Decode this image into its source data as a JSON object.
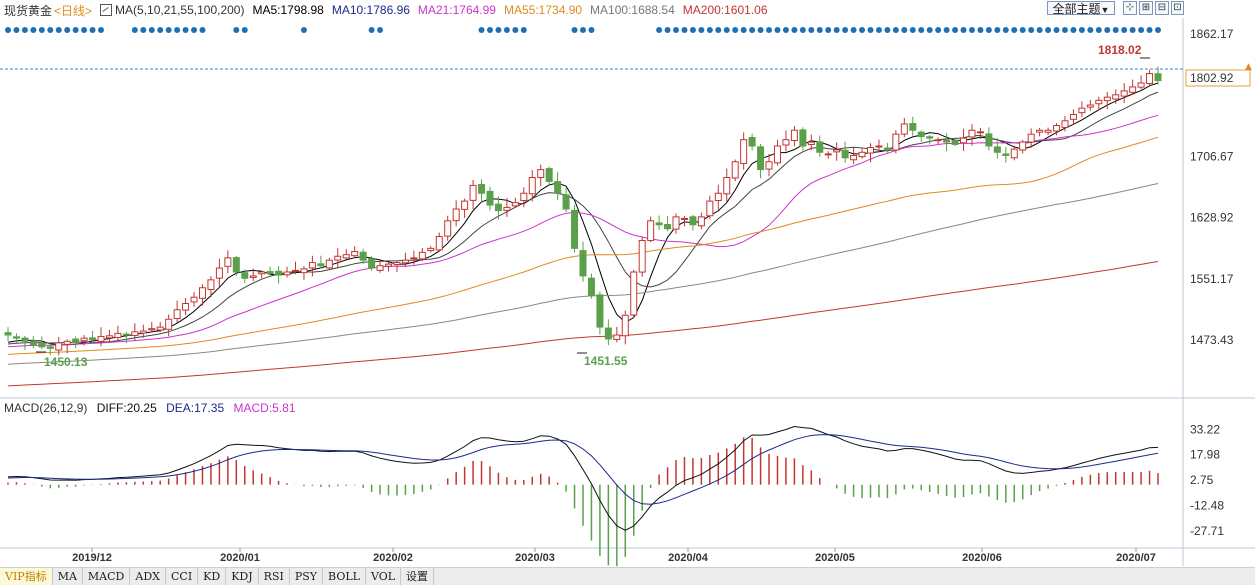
{
  "header": {
    "symbol": "现货黄金",
    "period": "<日线>",
    "ma_params": "MA(5,10,21,55,100,200)",
    "ma5": "MA5:1798.98",
    "ma10": "MA10:1786.96",
    "ma21": "MA21:1764.99",
    "ma55": "MA55:1734.90",
    "ma100": "MA100:1688.54",
    "ma200": "MA200:1601.06",
    "theme_button": "全部主题",
    "theme_arrow": "▼"
  },
  "colors": {
    "up": "#c23531",
    "down": "#5aa04a",
    "ma5": "#000000",
    "ma10": "#444444",
    "ma21": "#cc33cc",
    "ma55": "#e08a1e",
    "ma100": "#888888",
    "ma200": "#c0392b",
    "dots": "#1f6fb5",
    "last_price_line": "#3a86c8"
  },
  "macd": {
    "params": "MACD(26,12,9)",
    "diff": "DIFF:20.25",
    "dea": "DEA:17.35",
    "macd": "MACD:5.81"
  },
  "chart_data": [
    {
      "type": "candlestick",
      "title": "现货黄金 日线",
      "x_labels": [
        "2019/12",
        "2020/01",
        "2020/02",
        "2020/03",
        "2020/04",
        "2020/05",
        "2020/06",
        "2020/07"
      ],
      "ylim": [
        1400,
        1880
      ],
      "y_ticks": [
        "1862.17",
        "1706.67",
        "1628.92",
        "1551.17",
        "1473.43"
      ],
      "current_price": "1802.92",
      "annotations": {
        "high": "1818.02",
        "low1": "1450.13",
        "low2": "1451.55"
      },
      "close_path": [
        1480,
        1476,
        1472,
        1468,
        1465,
        1463,
        1470,
        1472,
        1470,
        1476,
        1474,
        1478,
        1479,
        1482,
        1481,
        1484,
        1485,
        1488,
        1490,
        1500,
        1512,
        1520,
        1528,
        1540,
        1550,
        1565,
        1578,
        1560,
        1552,
        1555,
        1560,
        1558,
        1556,
        1560,
        1562,
        1564,
        1572,
        1568,
        1575,
        1580,
        1582,
        1586,
        1575,
        1565,
        1568,
        1570,
        1572,
        1575,
        1578,
        1585,
        1590,
        1605,
        1625,
        1640,
        1650,
        1670,
        1660,
        1645,
        1638,
        1642,
        1648,
        1660,
        1680,
        1690,
        1675,
        1660,
        1640,
        1590,
        1555,
        1530,
        1490,
        1475,
        1480,
        1505,
        1560,
        1600,
        1625,
        1620,
        1615,
        1630,
        1628,
        1620,
        1630,
        1650,
        1660,
        1680,
        1700,
        1728,
        1720,
        1690,
        1700,
        1720,
        1728,
        1740,
        1720,
        1725,
        1712,
        1710,
        1715,
        1705,
        1708,
        1712,
        1718,
        1720,
        1715,
        1735,
        1748,
        1740,
        1732,
        1730,
        1728,
        1725,
        1722,
        1730,
        1740,
        1738,
        1720,
        1712,
        1708,
        1716,
        1725,
        1735,
        1740,
        1740,
        1746,
        1752,
        1760,
        1768,
        1772,
        1778,
        1782,
        1785,
        1790,
        1795,
        1800,
        1812,
        1803
      ],
      "ma_series": [
        "MA5",
        "MA10",
        "MA21",
        "MA55",
        "MA100",
        "MA200"
      ],
      "marker_dot_rows": 1
    },
    {
      "type": "macd",
      "y_ticks": [
        "33.22",
        "17.98",
        "2.75",
        "-12.48",
        "-27.71"
      ],
      "ylim": [
        -38,
        40
      ]
    }
  ],
  "bottom_tabs": [
    "VIP指标",
    "MA",
    "MACD",
    "ADX",
    "CCI",
    "KD",
    "KDJ",
    "RSI",
    "PSY",
    "BOLL",
    "VOL",
    "设置"
  ]
}
